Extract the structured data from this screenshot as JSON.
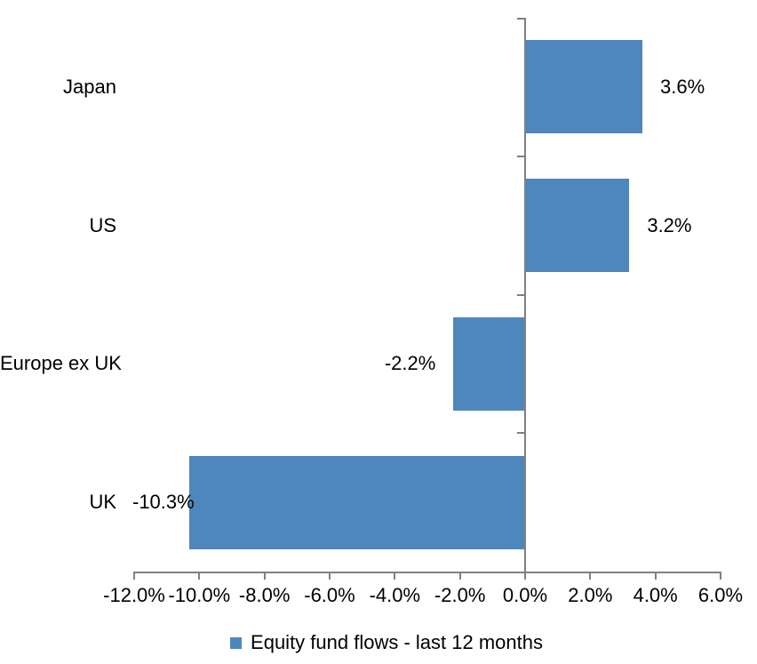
{
  "chart_data": {
    "type": "bar",
    "orientation": "horizontal",
    "title": "",
    "categories": [
      "Japan",
      "US",
      "Europe ex UK",
      "UK"
    ],
    "values": [
      3.6,
      3.2,
      -2.2,
      -10.3
    ],
    "data_labels": [
      "3.6%",
      "3.2%",
      "-2.2%",
      "-10.3%"
    ],
    "series": [
      {
        "name": "Equity fund flows - last 12 months",
        "values": [
          3.6,
          3.2,
          -2.2,
          -10.3
        ]
      }
    ],
    "x_ticks": [
      {
        "value": -12,
        "label": "-12.0%"
      },
      {
        "value": -10,
        "label": "-10.0%"
      },
      {
        "value": -8,
        "label": "-8.0%"
      },
      {
        "value": -6,
        "label": "-6.0%"
      },
      {
        "value": -4,
        "label": "-4.0%"
      },
      {
        "value": -2,
        "label": "-2.0%"
      },
      {
        "value": 0,
        "label": "0.0%"
      },
      {
        "value": 2,
        "label": "2.0%"
      },
      {
        "value": 4,
        "label": "4.0%"
      },
      {
        "value": 6,
        "label": "6.0%"
      }
    ],
    "xlim": [
      -12,
      6
    ],
    "grid": false,
    "legend_position": "bottom-center",
    "legend": [
      {
        "label": "Equity fund flows - last 12 months",
        "color": "#4E87BE"
      }
    ],
    "colors": {
      "bar": "#4E87BE",
      "axis": "#808080",
      "text": "#000000",
      "background": "#FFFFFF"
    }
  }
}
